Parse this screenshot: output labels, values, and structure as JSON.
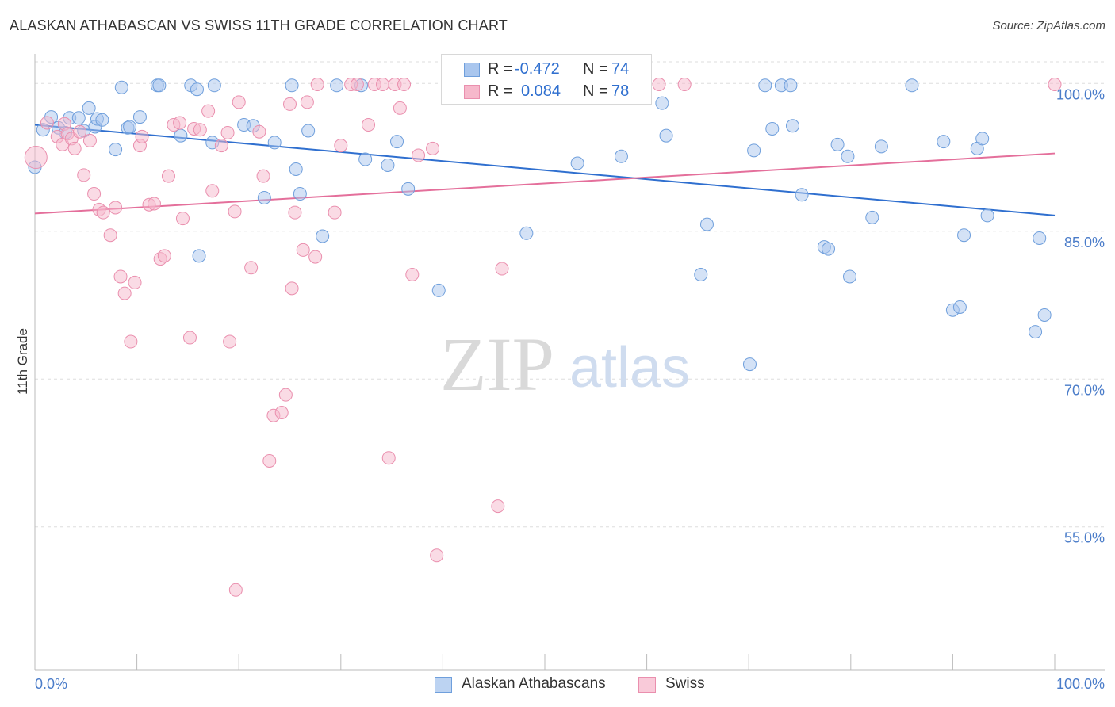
{
  "title": "ALASKAN ATHABASCAN VS SWISS 11TH GRADE CORRELATION CHART",
  "source": "Source: ZipAtlas.com",
  "watermark": {
    "zip": "ZIP",
    "atlas": "atlas"
  },
  "legend": {
    "rows": [
      {
        "r_label": "R =",
        "r_value": "-0.472",
        "n_label": "N =",
        "n_value": "74"
      },
      {
        "r_label": "R =",
        "r_value": "0.084",
        "n_label": "N =",
        "n_value": "78"
      }
    ]
  },
  "colors": {
    "blue_fill": "#a9c6ee",
    "blue_stroke": "#6f9fdc",
    "blue_line": "#2f6fcf",
    "pink_fill": "#f6b8cb",
    "pink_stroke": "#ea8fae",
    "pink_line": "#e46f9b",
    "axis_label": "#4a7cc9",
    "grid": "#dddddd"
  },
  "chart_data": {
    "type": "scatter",
    "title": "ALASKAN ATHABASCAN VS SWISS 11TH GRADE CORRELATION CHART",
    "xlabel": "",
    "ylabel": "11th Grade",
    "xlim": [
      0,
      100
    ],
    "ylim": [
      40.5,
      103
    ],
    "x_tick_labels": [
      "0.0%",
      "100.0%"
    ],
    "y_ticks": [
      100,
      85,
      70,
      55
    ],
    "y_tick_labels": [
      "100.0%",
      "85.0%",
      "70.0%",
      "55.0%"
    ],
    "series": [
      {
        "name": "Alaskan Athabascans",
        "r": -0.472,
        "n": 74,
        "trend": {
          "x": [
            0,
            100
          ],
          "y": [
            95.8,
            86.6
          ]
        },
        "points": [
          [
            0.0,
            91.5
          ],
          [
            0.8,
            95.3
          ],
          [
            1.6,
            96.6
          ],
          [
            2.3,
            95.5
          ],
          [
            3.0,
            95.0
          ],
          [
            3.4,
            96.5
          ],
          [
            4.3,
            96.5
          ],
          [
            4.8,
            95.2
          ],
          [
            5.3,
            97.5
          ],
          [
            5.9,
            95.6
          ],
          [
            6.1,
            96.4
          ],
          [
            6.6,
            96.3
          ],
          [
            7.9,
            93.3
          ],
          [
            8.5,
            99.6
          ],
          [
            9.1,
            95.5
          ],
          [
            9.3,
            95.6
          ],
          [
            10.3,
            96.6
          ],
          [
            12.0,
            99.8
          ],
          [
            12.2,
            99.8
          ],
          [
            14.3,
            94.7
          ],
          [
            15.3,
            99.8
          ],
          [
            15.9,
            99.4
          ],
          [
            16.1,
            82.5
          ],
          [
            17.4,
            94.0
          ],
          [
            17.6,
            99.8
          ],
          [
            20.5,
            95.8
          ],
          [
            21.4,
            95.7
          ],
          [
            22.5,
            88.4
          ],
          [
            23.5,
            94.0
          ],
          [
            25.2,
            99.8
          ],
          [
            25.6,
            91.3
          ],
          [
            26.0,
            88.8
          ],
          [
            26.8,
            95.2
          ],
          [
            28.2,
            84.5
          ],
          [
            29.6,
            99.8
          ],
          [
            32.0,
            99.8
          ],
          [
            32.4,
            92.3
          ],
          [
            34.6,
            91.7
          ],
          [
            35.5,
            94.1
          ],
          [
            36.6,
            89.3
          ],
          [
            39.6,
            79.0
          ],
          [
            48.2,
            84.8
          ],
          [
            53.2,
            91.9
          ],
          [
            57.5,
            92.6
          ],
          [
            61.5,
            98.0
          ],
          [
            61.9,
            94.7
          ],
          [
            65.3,
            80.6
          ],
          [
            65.9,
            85.7
          ],
          [
            70.1,
            71.5
          ],
          [
            70.5,
            93.2
          ],
          [
            71.6,
            99.8
          ],
          [
            72.3,
            95.4
          ],
          [
            73.2,
            99.8
          ],
          [
            74.1,
            99.8
          ],
          [
            74.3,
            95.7
          ],
          [
            75.2,
            88.7
          ],
          [
            77.4,
            83.4
          ],
          [
            77.8,
            83.2
          ],
          [
            78.7,
            93.8
          ],
          [
            79.7,
            92.6
          ],
          [
            79.9,
            80.4
          ],
          [
            82.1,
            86.4
          ],
          [
            83.0,
            93.6
          ],
          [
            86.0,
            99.8
          ],
          [
            89.1,
            94.1
          ],
          [
            90.0,
            77.0
          ],
          [
            90.7,
            77.3
          ],
          [
            91.1,
            84.6
          ],
          [
            92.4,
            93.4
          ],
          [
            92.9,
            94.4
          ],
          [
            93.4,
            86.6
          ],
          [
            98.1,
            74.8
          ],
          [
            98.5,
            84.3
          ],
          [
            99.0,
            76.5
          ]
        ]
      },
      {
        "name": "Swiss",
        "r": 0.084,
        "n": 78,
        "trend": {
          "x": [
            0,
            100
          ],
          "y": [
            86.8,
            92.9
          ]
        },
        "points": [
          [
            0.1,
            92.5
          ],
          [
            1.2,
            96.0
          ],
          [
            2.2,
            94.6
          ],
          [
            2.7,
            93.8
          ],
          [
            2.9,
            95.9
          ],
          [
            3.2,
            94.9
          ],
          [
            3.6,
            94.4
          ],
          [
            3.9,
            93.4
          ],
          [
            4.4,
            95.1
          ],
          [
            4.8,
            90.7
          ],
          [
            5.4,
            94.2
          ],
          [
            5.8,
            88.8
          ],
          [
            6.3,
            87.2
          ],
          [
            6.7,
            86.9
          ],
          [
            7.4,
            84.6
          ],
          [
            7.9,
            87.4
          ],
          [
            8.4,
            80.4
          ],
          [
            8.8,
            78.7
          ],
          [
            9.4,
            73.8
          ],
          [
            9.8,
            79.8
          ],
          [
            10.3,
            93.7
          ],
          [
            10.5,
            94.6
          ],
          [
            11.2,
            87.7
          ],
          [
            11.7,
            87.8
          ],
          [
            12.3,
            82.2
          ],
          [
            12.7,
            82.5
          ],
          [
            13.1,
            90.6
          ],
          [
            13.6,
            95.8
          ],
          [
            14.2,
            96.0
          ],
          [
            14.5,
            86.3
          ],
          [
            15.2,
            74.2
          ],
          [
            15.6,
            95.4
          ],
          [
            16.2,
            95.3
          ],
          [
            17.0,
            97.2
          ],
          [
            17.4,
            89.1
          ],
          [
            18.3,
            93.7
          ],
          [
            18.9,
            95.0
          ],
          [
            19.1,
            73.8
          ],
          [
            19.6,
            87.0
          ],
          [
            20.0,
            98.1
          ],
          [
            21.2,
            81.3
          ],
          [
            22.0,
            95.1
          ],
          [
            22.4,
            90.6
          ],
          [
            23.0,
            61.7
          ],
          [
            23.4,
            66.3
          ],
          [
            24.2,
            66.6
          ],
          [
            24.6,
            68.4
          ],
          [
            25.0,
            97.9
          ],
          [
            25.2,
            79.2
          ],
          [
            25.5,
            86.9
          ],
          [
            26.3,
            83.1
          ],
          [
            26.7,
            98.1
          ],
          [
            27.5,
            82.4
          ],
          [
            29.4,
            86.9
          ],
          [
            30.0,
            93.7
          ],
          [
            31.0,
            99.9
          ],
          [
            31.6,
            99.9
          ],
          [
            32.7,
            95.8
          ],
          [
            33.3,
            99.9
          ],
          [
            34.1,
            99.9
          ],
          [
            34.7,
            62.0
          ],
          [
            35.3,
            99.9
          ],
          [
            35.8,
            97.5
          ],
          [
            36.2,
            99.9
          ],
          [
            37.0,
            80.6
          ],
          [
            37.6,
            92.7
          ],
          [
            39.0,
            93.4
          ],
          [
            39.4,
            52.1
          ],
          [
            45.4,
            57.1
          ],
          [
            45.8,
            81.2
          ],
          [
            49.6,
            99.9
          ],
          [
            55.1,
            99.9
          ],
          [
            56.3,
            99.9
          ],
          [
            61.2,
            99.9
          ],
          [
            63.7,
            99.9
          ],
          [
            100.0,
            99.9
          ],
          [
            19.7,
            48.6
          ],
          [
            27.7,
            99.9
          ]
        ]
      }
    ]
  }
}
